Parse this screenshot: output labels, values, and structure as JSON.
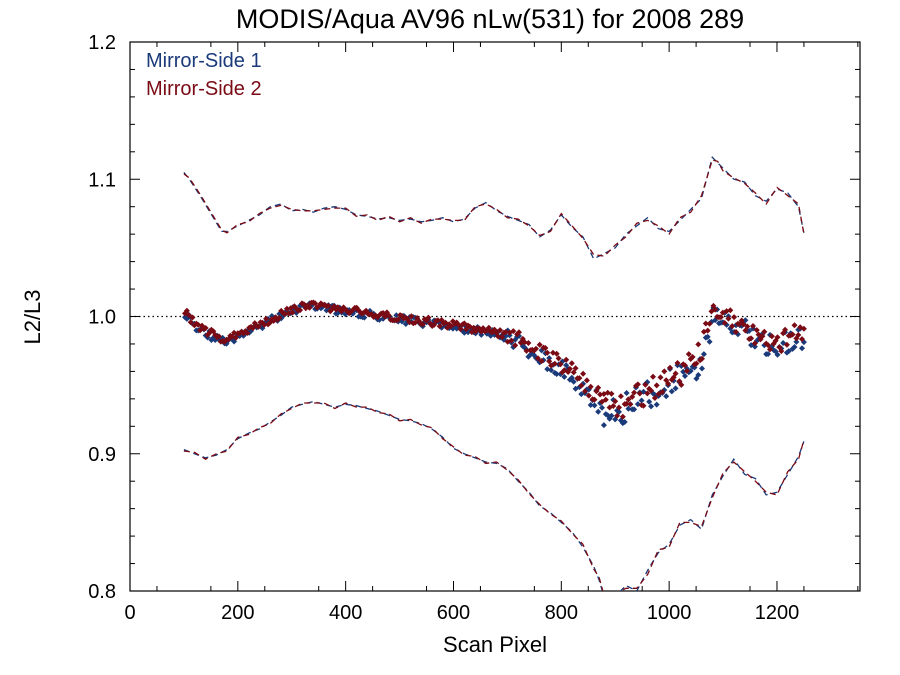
{
  "chart_data": {
    "type": "scatter",
    "title": "MODIS/Aqua AV96 nLw(531) for 2008 289",
    "xlabel": "Scan Pixel",
    "ylabel": "L2/L3",
    "xlim": [
      0,
      1354
    ],
    "ylim": [
      0.8,
      1.2
    ],
    "x_ticks": [
      0,
      200,
      400,
      600,
      800,
      1000,
      1200
    ],
    "x_tick_labels": [
      "0",
      "200",
      "400",
      "600",
      "800",
      "1000",
      "1200"
    ],
    "y_ticks": [
      0.8,
      0.9,
      1.0,
      1.1,
      1.2
    ],
    "y_tick_labels": [
      "0.8",
      "0.9",
      "1.0",
      "1.1",
      "1.2"
    ],
    "reference_line": 1.0,
    "legend_position": "top-left",
    "series": [
      {
        "name": "Mirror-Side 1",
        "color": "#1a3a7a",
        "mean": {
          "x": [
            100,
            120,
            140,
            160,
            180,
            200,
            220,
            260,
            300,
            340,
            380,
            420,
            460,
            500,
            540,
            580,
            620,
            660,
            700,
            740,
            770,
            800,
            830,
            860,
            880,
            900,
            920,
            940,
            960,
            980,
            1000,
            1020,
            1040,
            1060,
            1080,
            1100,
            1120,
            1140,
            1160,
            1180,
            1200,
            1220,
            1240,
            1250
          ],
          "y": [
            1.003,
            0.993,
            0.988,
            0.984,
            0.981,
            0.986,
            0.988,
            0.997,
            1.004,
            1.008,
            1.005,
            1.003,
            1.0,
            0.998,
            0.996,
            0.994,
            0.991,
            0.989,
            0.985,
            0.976,
            0.968,
            0.962,
            0.952,
            0.938,
            0.928,
            0.93,
            0.934,
            0.938,
            0.942,
            0.946,
            0.952,
            0.956,
            0.962,
            0.968,
            1.0,
            0.996,
            0.994,
            0.99,
            0.985,
            0.98,
            0.978,
            0.982,
            0.986,
            0.984
          ]
        },
        "upper": {
          "x": [
            100,
            110,
            130,
            150,
            170,
            180,
            200,
            220,
            240,
            260,
            280,
            300,
            320,
            340,
            360,
            380,
            400,
            420,
            440,
            460,
            480,
            500,
            520,
            540,
            560,
            580,
            600,
            620,
            640,
            660,
            680,
            700,
            720,
            740,
            760,
            780,
            800,
            820,
            840,
            860,
            880,
            900,
            920,
            940,
            960,
            980,
            1000,
            1020,
            1040,
            1060,
            1080,
            1090,
            1100,
            1120,
            1140,
            1160,
            1180,
            1200,
            1220,
            1240,
            1250
          ],
          "y": [
            1.105,
            1.1,
            1.088,
            1.075,
            1.062,
            1.062,
            1.066,
            1.07,
            1.074,
            1.08,
            1.082,
            1.077,
            1.078,
            1.076,
            1.079,
            1.08,
            1.078,
            1.074,
            1.073,
            1.071,
            1.072,
            1.07,
            1.071,
            1.069,
            1.07,
            1.072,
            1.069,
            1.071,
            1.079,
            1.083,
            1.077,
            1.073,
            1.07,
            1.067,
            1.058,
            1.063,
            1.074,
            1.065,
            1.058,
            1.042,
            1.046,
            1.05,
            1.06,
            1.066,
            1.072,
            1.064,
            1.062,
            1.07,
            1.078,
            1.086,
            1.116,
            1.112,
            1.108,
            1.1,
            1.098,
            1.088,
            1.084,
            1.093,
            1.09,
            1.08,
            1.061
          ]
        },
        "lower": {
          "x": [
            100,
            120,
            140,
            160,
            180,
            200,
            220,
            240,
            260,
            280,
            300,
            320,
            340,
            360,
            380,
            400,
            420,
            440,
            460,
            480,
            500,
            520,
            540,
            560,
            580,
            600,
            620,
            640,
            660,
            680,
            700,
            720,
            740,
            760,
            780,
            800,
            820,
            840,
            860,
            870,
            880,
            900,
            920,
            940,
            960,
            980,
            1000,
            1020,
            1040,
            1060,
            1080,
            1100,
            1120,
            1140,
            1160,
            1180,
            1200,
            1220,
            1240,
            1250
          ],
          "y": [
            0.903,
            0.9,
            0.897,
            0.899,
            0.903,
            0.911,
            0.915,
            0.918,
            0.923,
            0.928,
            0.934,
            0.936,
            0.938,
            0.936,
            0.934,
            0.936,
            0.935,
            0.933,
            0.931,
            0.928,
            0.925,
            0.924,
            0.922,
            0.918,
            0.912,
            0.904,
            0.9,
            0.897,
            0.894,
            0.893,
            0.889,
            0.88,
            0.872,
            0.862,
            0.857,
            0.85,
            0.843,
            0.832,
            0.818,
            0.808,
            0.795,
            0.796,
            0.804,
            0.8,
            0.815,
            0.828,
            0.834,
            0.848,
            0.852,
            0.845,
            0.87,
            0.884,
            0.896,
            0.885,
            0.882,
            0.87,
            0.872,
            0.885,
            0.898,
            0.909
          ]
        }
      },
      {
        "name": "Mirror-Side 2",
        "color": "#7a0a14",
        "mean": {
          "x": [
            100,
            120,
            140,
            160,
            180,
            200,
            220,
            260,
            300,
            340,
            380,
            420,
            460,
            500,
            540,
            580,
            620,
            660,
            700,
            740,
            770,
            800,
            830,
            860,
            880,
            900,
            920,
            940,
            960,
            980,
            1000,
            1020,
            1040,
            1060,
            1080,
            1100,
            1120,
            1140,
            1160,
            1180,
            1200,
            1220,
            1240,
            1250
          ],
          "y": [
            1.004,
            0.995,
            0.99,
            0.986,
            0.983,
            0.987,
            0.99,
            0.998,
            1.005,
            1.009,
            1.006,
            1.004,
            1.001,
            0.999,
            0.997,
            0.995,
            0.992,
            0.99,
            0.987,
            0.979,
            0.972,
            0.966,
            0.957,
            0.943,
            0.934,
            0.935,
            0.938,
            0.942,
            0.946,
            0.95,
            0.955,
            0.959,
            0.965,
            0.972,
            1.003,
            0.999,
            0.996,
            0.992,
            0.987,
            0.982,
            0.98,
            0.984,
            0.988,
            0.986
          ]
        },
        "upper": {
          "x": [
            100,
            110,
            130,
            150,
            170,
            180,
            200,
            220,
            240,
            260,
            280,
            300,
            320,
            340,
            360,
            380,
            400,
            420,
            440,
            460,
            480,
            500,
            520,
            540,
            560,
            580,
            600,
            620,
            640,
            660,
            680,
            700,
            720,
            740,
            760,
            780,
            800,
            820,
            840,
            860,
            880,
            900,
            920,
            940,
            960,
            980,
            1000,
            1020,
            1040,
            1060,
            1080,
            1090,
            1100,
            1120,
            1140,
            1160,
            1180,
            1200,
            1220,
            1240,
            1250
          ],
          "y": [
            1.104,
            1.101,
            1.089,
            1.076,
            1.063,
            1.061,
            1.067,
            1.069,
            1.075,
            1.079,
            1.081,
            1.078,
            1.077,
            1.077,
            1.078,
            1.079,
            1.079,
            1.073,
            1.074,
            1.07,
            1.073,
            1.069,
            1.072,
            1.068,
            1.071,
            1.071,
            1.07,
            1.07,
            1.08,
            1.082,
            1.078,
            1.072,
            1.071,
            1.066,
            1.059,
            1.062,
            1.075,
            1.066,
            1.057,
            1.045,
            1.044,
            1.052,
            1.058,
            1.068,
            1.07,
            1.066,
            1.06,
            1.072,
            1.076,
            1.088,
            1.114,
            1.113,
            1.106,
            1.101,
            1.097,
            1.09,
            1.082,
            1.094,
            1.088,
            1.082,
            1.06
          ]
        },
        "lower": {
          "x": [
            100,
            120,
            140,
            160,
            180,
            200,
            220,
            240,
            260,
            280,
            300,
            320,
            340,
            360,
            380,
            400,
            420,
            440,
            460,
            480,
            500,
            520,
            540,
            560,
            580,
            600,
            620,
            640,
            660,
            680,
            700,
            720,
            740,
            760,
            780,
            800,
            820,
            840,
            860,
            870,
            880,
            900,
            920,
            940,
            960,
            980,
            1000,
            1020,
            1040,
            1060,
            1080,
            1100,
            1120,
            1140,
            1160,
            1180,
            1200,
            1220,
            1240,
            1250
          ],
          "y": [
            0.902,
            0.901,
            0.896,
            0.9,
            0.902,
            0.912,
            0.914,
            0.919,
            0.922,
            0.929,
            0.933,
            0.937,
            0.937,
            0.937,
            0.933,
            0.937,
            0.934,
            0.934,
            0.93,
            0.929,
            0.924,
            0.925,
            0.921,
            0.919,
            0.911,
            0.905,
            0.899,
            0.898,
            0.893,
            0.894,
            0.888,
            0.881,
            0.871,
            0.863,
            0.856,
            0.851,
            0.842,
            0.834,
            0.816,
            0.81,
            0.796,
            0.798,
            0.802,
            0.802,
            0.812,
            0.83,
            0.832,
            0.85,
            0.85,
            0.847,
            0.868,
            0.886,
            0.894,
            0.887,
            0.88,
            0.872,
            0.87,
            0.887,
            0.896,
            0.91
          ]
        }
      }
    ]
  }
}
